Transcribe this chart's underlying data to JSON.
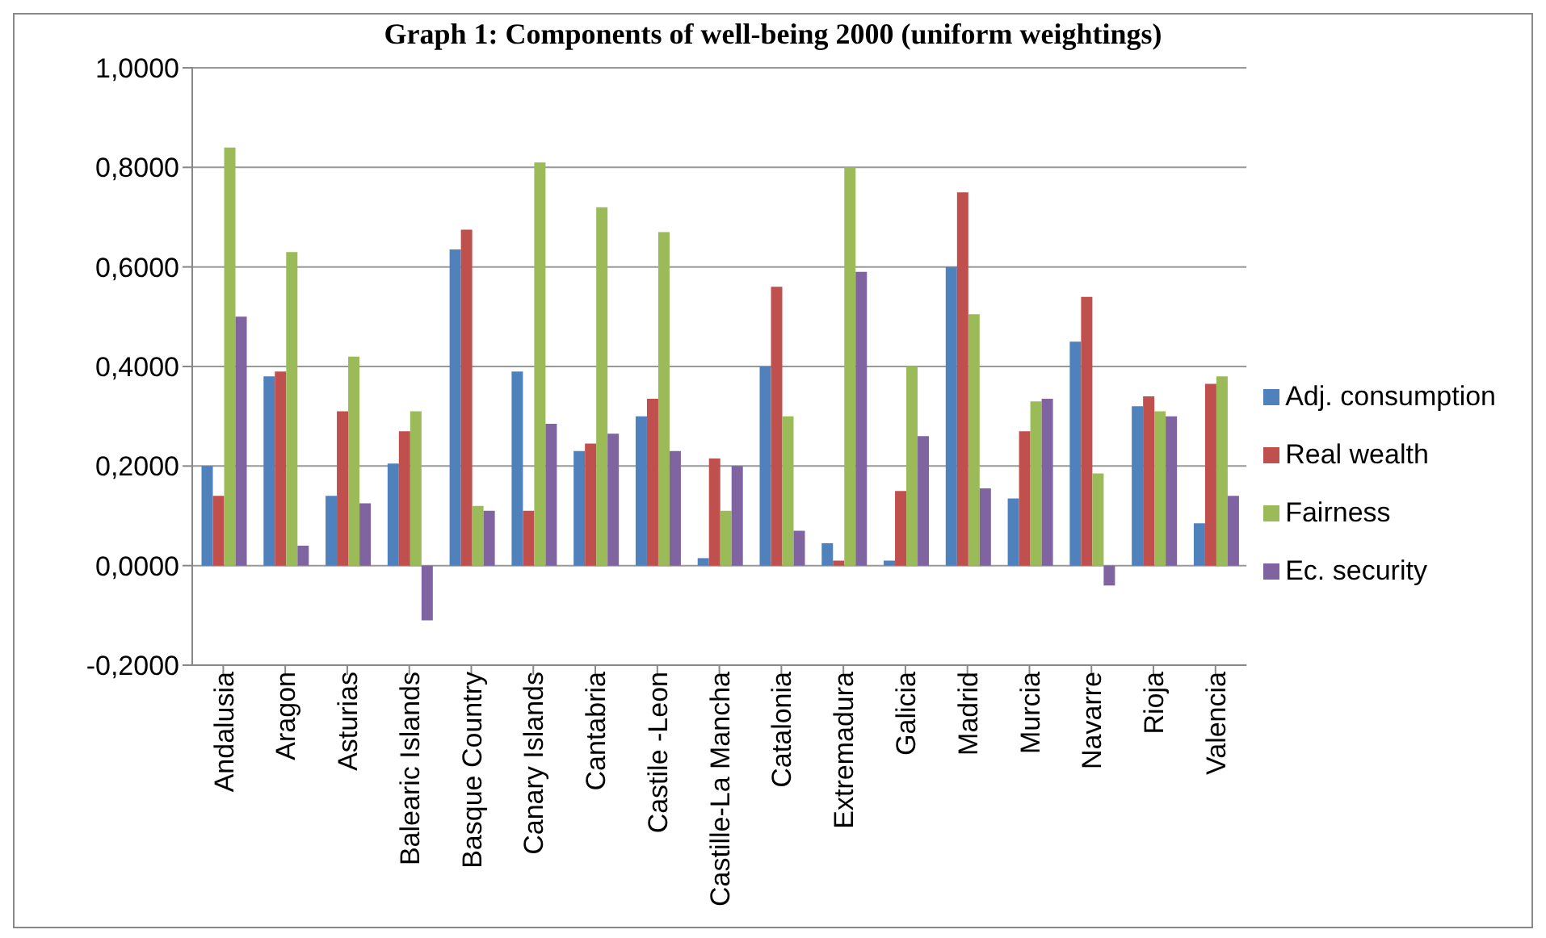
{
  "chart_data": {
    "type": "bar",
    "title": "Graph 1: Components of well-being 2000 (uniform weightings)",
    "categories": [
      "Andalusia",
      "Aragon",
      "Asturias",
      "Balearic Islands",
      "Basque Country",
      "Canary Islands",
      "Cantabria",
      "Castile -Leon",
      "Castille-La Mancha",
      "Catalonia",
      "Extremadura",
      "Galicia",
      "Madrid",
      "Murcia",
      "Navarre",
      "Rioja",
      "Valencia"
    ],
    "series": [
      {
        "name": "Adj. consumption",
        "color": "#4f81bd",
        "values": [
          0.2,
          0.38,
          0.14,
          0.205,
          0.635,
          0.39,
          0.23,
          0.3,
          0.015,
          0.4,
          0.045,
          0.01,
          0.6,
          0.135,
          0.45,
          0.32,
          0.085
        ]
      },
      {
        "name": "Real wealth",
        "color": "#c0504d",
        "values": [
          0.14,
          0.39,
          0.31,
          0.27,
          0.675,
          0.11,
          0.245,
          0.335,
          0.215,
          0.56,
          0.01,
          0.15,
          0.75,
          0.27,
          0.54,
          0.34,
          0.365
        ]
      },
      {
        "name": "Fairness",
        "color": "#9bbb59",
        "values": [
          0.84,
          0.63,
          0.42,
          0.31,
          0.12,
          0.81,
          0.72,
          0.67,
          0.11,
          0.3,
          0.8,
          0.4,
          0.505,
          0.33,
          0.185,
          0.31,
          0.38
        ]
      },
      {
        "name": "Ec. security",
        "color": "#8064a2",
        "values": [
          0.5,
          0.04,
          0.125,
          -0.11,
          0.11,
          0.285,
          0.265,
          0.23,
          0.2,
          0.07,
          0.59,
          0.26,
          0.155,
          0.335,
          -0.04,
          0.3,
          0.14
        ]
      }
    ],
    "ylim": [
      -0.2,
      1
    ],
    "yticks": [
      {
        "value": -0.2,
        "label": "-0,2000"
      },
      {
        "value": 0,
        "label": "0,0000"
      },
      {
        "value": 0.2,
        "label": "0,2000"
      },
      {
        "value": 0.4,
        "label": "0,4000"
      },
      {
        "value": 0.6,
        "label": "0,6000"
      },
      {
        "value": 0.8,
        "label": "0,8000"
      },
      {
        "value": 1,
        "label": "1,0000"
      }
    ],
    "grid": "y",
    "legend": "right"
  }
}
